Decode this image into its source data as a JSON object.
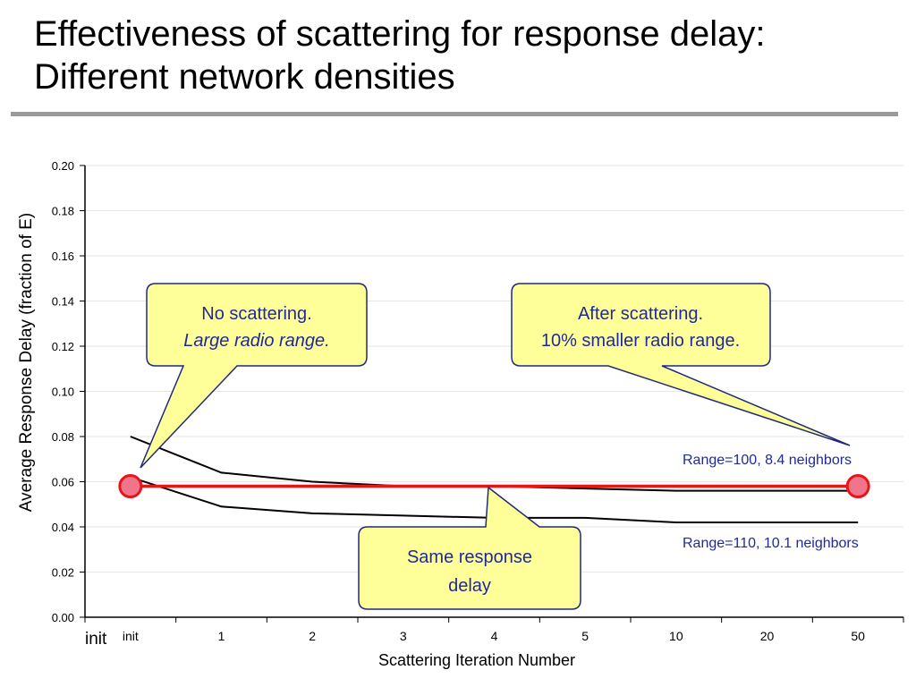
{
  "slide": {
    "title_line1": "Effectiveness of scattering for response delay:",
    "title_line2": "Different network densities"
  },
  "chart_data": {
    "type": "line",
    "categories": [
      "init",
      "1",
      "2",
      "3",
      "4",
      "5",
      "10",
      "20",
      "50"
    ],
    "xlabel": "Scattering Iteration Number",
    "ylabel": "Average Response Delay (fraction of E)",
    "ylim": [
      0,
      0.2
    ],
    "yticks": [
      0.0,
      0.02,
      0.04,
      0.06,
      0.08,
      0.1,
      0.12,
      0.14,
      0.16,
      0.18,
      0.2
    ],
    "grid": true,
    "series": [
      {
        "name": "Range=100, 8.4 neighbors",
        "values": [
          0.08,
          0.064,
          0.06,
          0.058,
          0.058,
          0.057,
          0.056,
          0.056,
          0.056
        ],
        "color": "#000000"
      },
      {
        "name": "Range=110, 10.1 neighbors",
        "values": [
          0.062,
          0.049,
          0.046,
          0.045,
          0.044,
          0.044,
          0.042,
          0.042,
          0.042
        ],
        "color": "#000000"
      }
    ],
    "reference_line": {
      "value": 0.058,
      "color": "#e8141c",
      "marker_color": "#f0758a"
    },
    "callouts": {
      "no_scatter": {
        "line1": "No scattering.",
        "line2": "Large radio range."
      },
      "after_scatter": {
        "line1": "After scattering.",
        "line2": "10% smaller radio range."
      },
      "same_delay": {
        "line1": "Same response",
        "line2": "delay"
      }
    },
    "extra_x_label": "init",
    "callout_fill": "#ffff99",
    "callout_stroke": "#1f2a7a",
    "text_blue": "#1f2a9a"
  }
}
